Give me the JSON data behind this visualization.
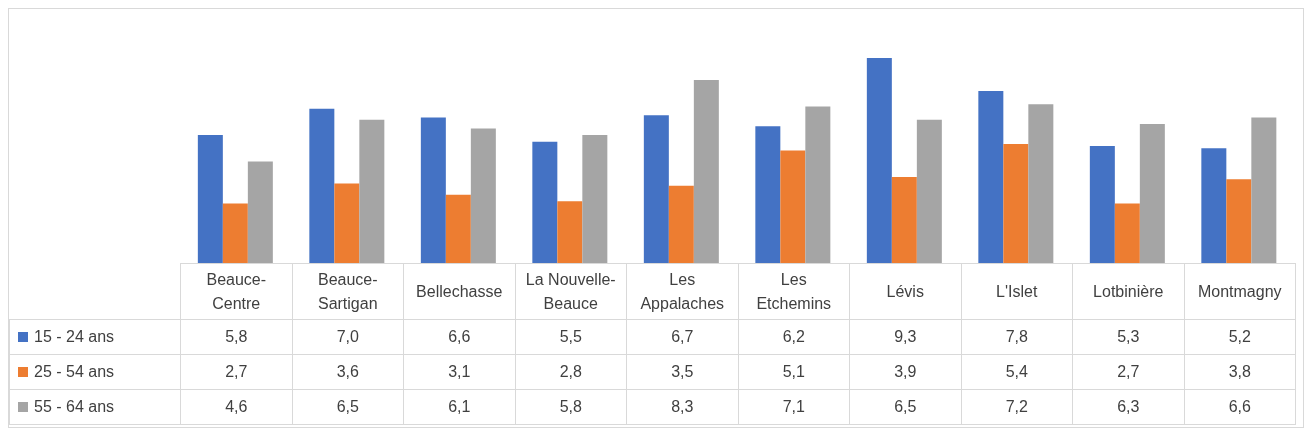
{
  "chart_data": {
    "type": "bar",
    "categories": [
      "Beauce-Centre",
      "Beauce-Sartigan",
      "Bellechasse",
      "La Nouvelle-Beauce",
      "Les Appalaches",
      "Les Etchemins",
      "Lévis",
      "L'Islet",
      "Lotbinière",
      "Montmagny"
    ],
    "series": [
      {
        "name": "15 - 24 ans",
        "color": "#4472c4",
        "values": [
          5.8,
          7.0,
          6.6,
          5.5,
          6.7,
          6.2,
          9.3,
          7.8,
          5.3,
          5.2
        ],
        "value_labels": [
          "5,8",
          "7,0",
          "6,6",
          "5,5",
          "6,7",
          "6,2",
          "9,3",
          "7,8",
          "5,3",
          "5,2"
        ]
      },
      {
        "name": "25 - 54 ans",
        "color": "#ed7d31",
        "values": [
          2.7,
          3.6,
          3.1,
          2.8,
          3.5,
          5.1,
          3.9,
          5.4,
          2.7,
          3.8
        ],
        "value_labels": [
          "2,7",
          "3,6",
          "3,1",
          "2,8",
          "3,5",
          "5,1",
          "3,9",
          "5,4",
          "2,7",
          "3,8"
        ]
      },
      {
        "name": "55 - 64 ans",
        "color": "#a5a5a5",
        "values": [
          4.6,
          6.5,
          6.1,
          5.8,
          8.3,
          7.1,
          6.5,
          7.2,
          6.3,
          6.6
        ],
        "value_labels": [
          "4,6",
          "6,5",
          "6,1",
          "5,8",
          "8,3",
          "7,1",
          "6,5",
          "7,2",
          "6,3",
          "6,6"
        ]
      }
    ],
    "legend": "bottom"
  }
}
